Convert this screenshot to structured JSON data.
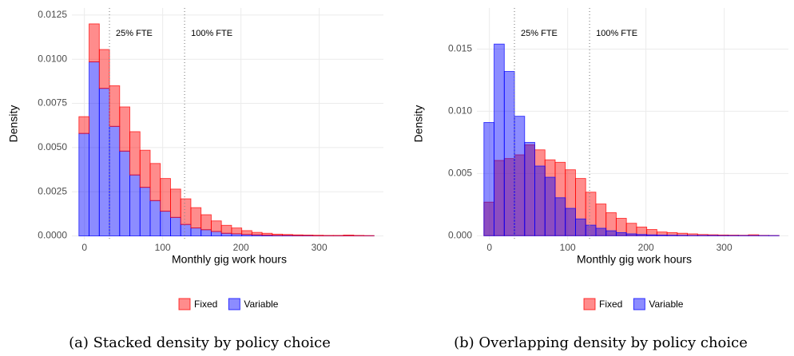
{
  "chart_data": [
    {
      "type": "histogram",
      "barmode": "stack",
      "caption": "(a) Stacked density by policy choice",
      "x_label": "Monthly gig work hours",
      "y_label": "Density",
      "grid": true,
      "legend": "bottom",
      "bins": [
        -7,
        6,
        19,
        32,
        45,
        58,
        71,
        84,
        97,
        110,
        123,
        136,
        149,
        162,
        175,
        188,
        201,
        214,
        227,
        240,
        253,
        266,
        279,
        292,
        305,
        318,
        331,
        344,
        357,
        370
      ],
      "series": [
        {
          "name": "Fixed",
          "color": "#ff0000",
          "values": [
            0.00095,
            0.00215,
            0.0022,
            0.0023,
            0.0025,
            0.00245,
            0.0021,
            0.0021,
            0.00185,
            0.0016,
            0.00145,
            0.00115,
            0.00085,
            0.0006,
            0.00045,
            0.00033,
            0.00022,
            0.00014,
            0.00011,
            7e-05,
            5e-05,
            4e-05,
            3e-05,
            3e-05,
            2e-05,
            2e-05,
            4e-05,
            2e-05,
            1e-05
          ]
        },
        {
          "name": "Variable",
          "color": "#0000ff",
          "values": [
            0.0058,
            0.00985,
            0.00835,
            0.0062,
            0.0048,
            0.00345,
            0.00275,
            0.002,
            0.0014,
            0.00105,
            0.00065,
            0.00045,
            0.00035,
            0.00025,
            0.00015,
            0.00012,
            8e-05,
            6e-05,
            4e-05,
            3e-05,
            3e-05,
            2e-05,
            2e-05,
            1e-05,
            1e-05,
            1e-05,
            1e-05,
            1e-05,
            1e-05
          ]
        }
      ],
      "vlines": [
        {
          "value": 32,
          "label": "25% FTE"
        },
        {
          "value": 128,
          "label": "100% FTE"
        }
      ],
      "xlim": [
        -16,
        382
      ],
      "ylim": [
        -0.0002,
        0.0129
      ],
      "xticks": [
        0,
        100,
        200,
        300
      ],
      "yticks": [
        {
          "value": 0,
          "label": "0.0000"
        },
        {
          "value": 0.0025,
          "label": "0.0025"
        },
        {
          "value": 0.005,
          "label": "0.0050"
        },
        {
          "value": 0.0075,
          "label": "0.0075"
        },
        {
          "value": 0.01,
          "label": "0.0100"
        },
        {
          "value": 0.0125,
          "label": "0.0125"
        }
      ]
    },
    {
      "type": "histogram",
      "barmode": "overlay",
      "caption": "(b) Overlapping density by policy choice",
      "x_label": "Monthly gig work hours",
      "y_label": "Density",
      "grid": true,
      "legend": "bottom",
      "bins": [
        -7,
        6,
        19,
        32,
        45,
        58,
        71,
        84,
        97,
        110,
        123,
        136,
        149,
        162,
        175,
        188,
        201,
        214,
        227,
        240,
        253,
        266,
        279,
        292,
        305,
        318,
        331,
        344,
        357,
        370
      ],
      "series": [
        {
          "name": "Fixed",
          "color": "#ff0000",
          "values": [
            0.0027,
            0.00605,
            0.0062,
            0.0065,
            0.0073,
            0.0069,
            0.0061,
            0.0059,
            0.0053,
            0.0046,
            0.0035,
            0.00255,
            0.00185,
            0.0014,
            0.001,
            0.0007,
            0.0005,
            0.0003,
            0.00025,
            0.0002,
            0.00015,
            0.0001,
            8e-05,
            6e-05,
            5e-05,
            4e-05,
            8e-05,
            3e-05,
            2e-05
          ]
        },
        {
          "name": "Variable",
          "color": "#0000ff",
          "values": [
            0.0091,
            0.0154,
            0.0132,
            0.0096,
            0.0075,
            0.0056,
            0.0047,
            0.00305,
            0.0022,
            0.00135,
            0.00085,
            0.0006,
            0.0004,
            0.00025,
            0.00015,
            0.0001,
            7e-05,
            5e-05,
            4e-05,
            3e-05,
            2e-05,
            2e-05,
            2e-05,
            1e-05,
            1e-05,
            1e-05,
            1e-05,
            1e-05,
            1e-05
          ]
        }
      ],
      "vlines": [
        {
          "value": 32,
          "label": "25% FTE"
        },
        {
          "value": 128,
          "label": "100% FTE"
        }
      ],
      "xlim": [
        -16,
        382
      ],
      "ylim": [
        -0.0003,
        0.0183
      ],
      "xticks": [
        0,
        100,
        200,
        300
      ],
      "yticks": [
        {
          "value": 0,
          "label": "0.000"
        },
        {
          "value": 0.005,
          "label": "0.005"
        },
        {
          "value": 0.01,
          "label": "0.010"
        },
        {
          "value": 0.015,
          "label": "0.015"
        }
      ]
    }
  ]
}
